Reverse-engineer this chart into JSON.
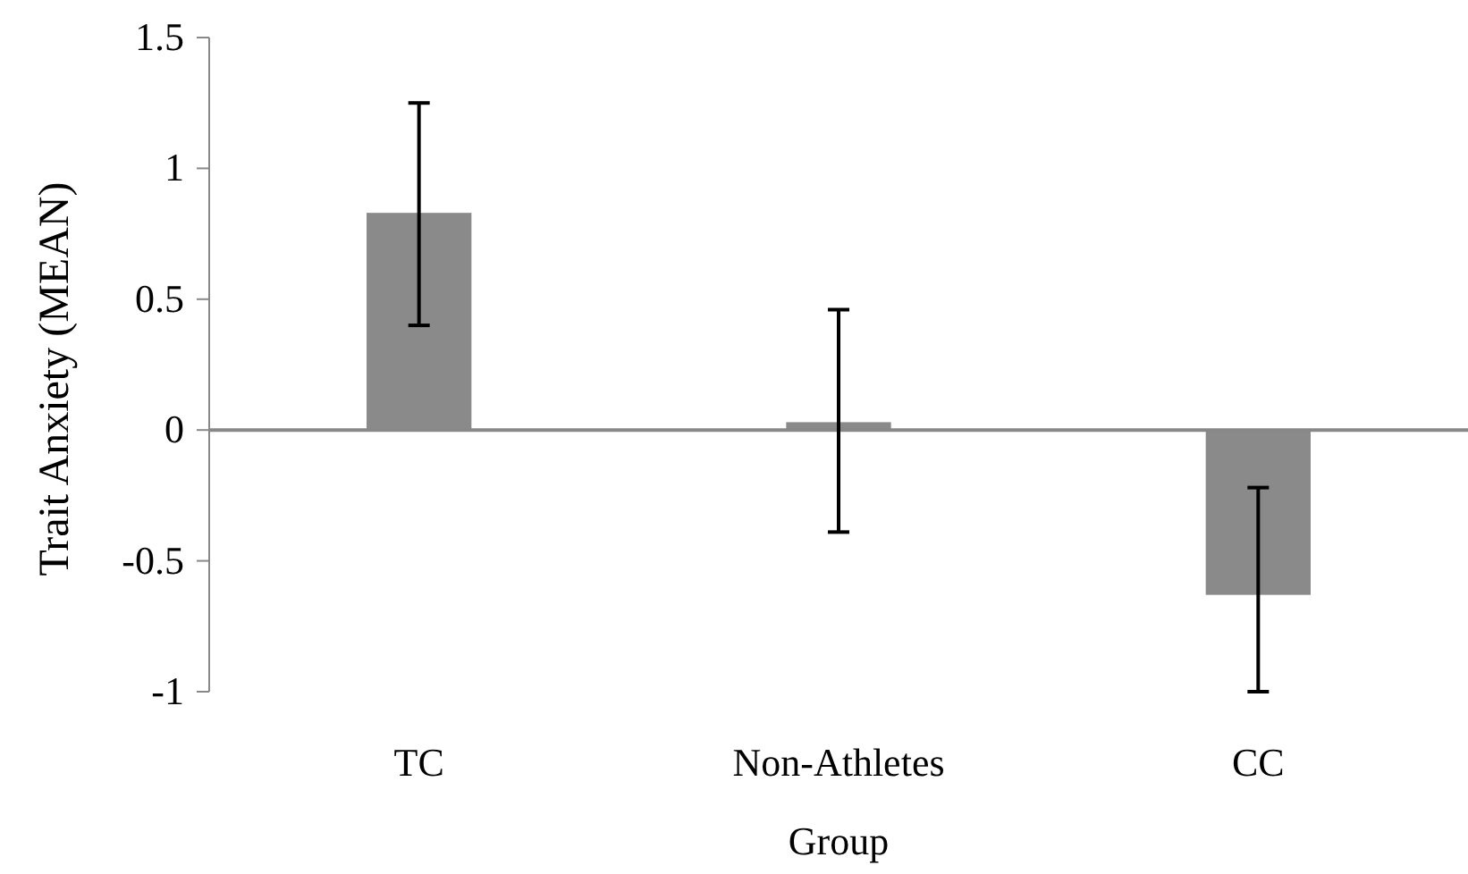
{
  "chart_data": {
    "type": "bar",
    "xlabel": "Group",
    "ylabel": "Trait Anxiety (MEAN)",
    "categories": [
      "TC",
      "Non-Athletes",
      "CC"
    ],
    "values": [
      0.83,
      0.03,
      -0.63
    ],
    "errors": [
      [
        0.4,
        1.25
      ],
      [
        -0.39,
        0.46
      ],
      [
        -1,
        -0.22
      ]
    ],
    "color": "#8a8a8a",
    "ylim": [
      -1,
      1.5
    ],
    "yticks": [
      -1,
      -0.5,
      0,
      0.5,
      1,
      1.5
    ]
  }
}
